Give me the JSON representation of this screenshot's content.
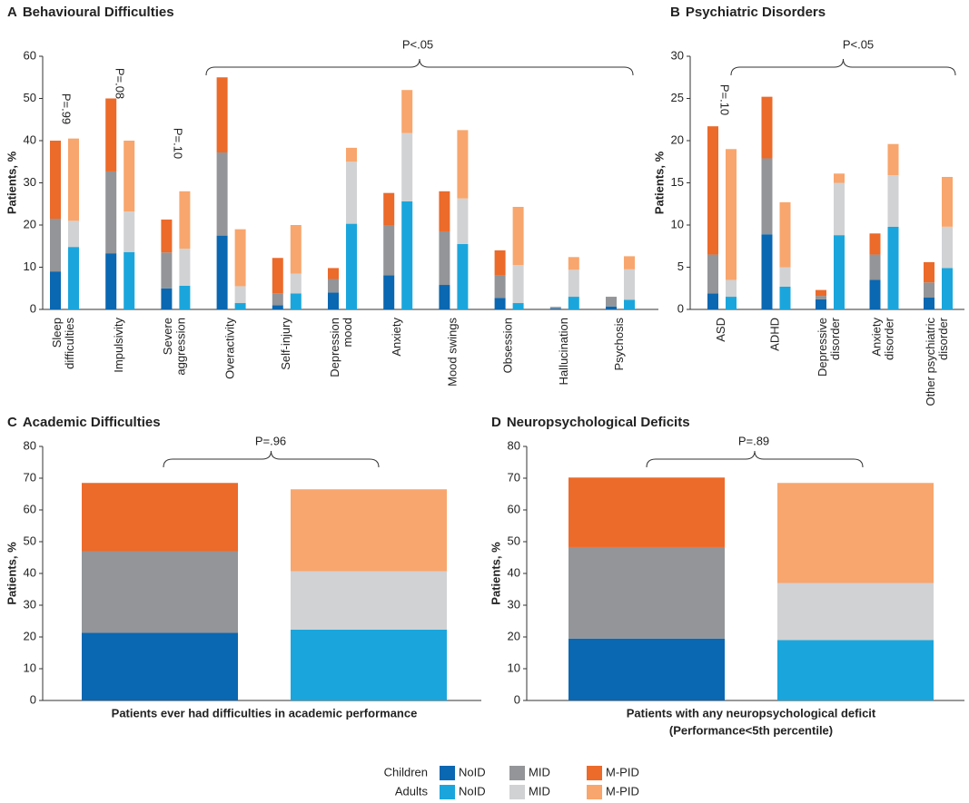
{
  "chart_data": [
    {
      "type": "bar",
      "stacked": true,
      "panel": "A",
      "title": "Behavioural Difficulties",
      "ylabel": "Patients, %",
      "ylim": [
        0,
        60
      ],
      "yticks": [
        0,
        10,
        20,
        30,
        40,
        50,
        60
      ],
      "categories": [
        [
          "Sleep",
          "difficulties"
        ],
        [
          "Impulsivity"
        ],
        [
          "Severe",
          "aggression"
        ],
        [
          "Overactivity"
        ],
        [
          "Self-injury"
        ],
        [
          "Depression",
          "mood"
        ],
        [
          "Anxiety"
        ],
        [
          "Mood swings"
        ],
        [
          "Obsession"
        ],
        [
          "Hallucination"
        ],
        [
          "Psychosis"
        ]
      ],
      "values": [
        [
          [
            9,
            12.5,
            18.5
          ],
          [
            14.8,
            6.2,
            19.5
          ]
        ],
        [
          [
            13.3,
            19.4,
            17.3
          ],
          [
            13.6,
            9.6,
            16.8
          ]
        ],
        [
          [
            5,
            8.5,
            7.8
          ],
          [
            5.6,
            8.8,
            13.6
          ]
        ],
        [
          [
            17.5,
            19.7,
            17.8
          ],
          [
            1.5,
            4,
            13.5
          ]
        ],
        [
          [
            1,
            2.8,
            8.4
          ],
          [
            3.8,
            4.7,
            11.5
          ]
        ],
        [
          [
            4,
            3.2,
            2.6
          ],
          [
            20.3,
            14.7,
            3.3
          ]
        ],
        [
          [
            8.1,
            11.9,
            7.6
          ],
          [
            25.6,
            16.2,
            10.2
          ]
        ],
        [
          [
            5.8,
            12.7,
            9.5
          ],
          [
            15.5,
            10.8,
            16.2
          ]
        ],
        [
          [
            2.7,
            5.3,
            6
          ],
          [
            1.5,
            9,
            13.8
          ]
        ],
        [
          [
            0.2,
            0.4,
            0
          ],
          [
            3,
            6.4,
            3
          ]
        ],
        [
          [
            0.7,
            2.3,
            0
          ],
          [
            2.3,
            7.2,
            3.1
          ]
        ]
      ],
      "annotations": [
        {
          "text": "P=.99"
        },
        {
          "text": "P=.08"
        },
        {
          "text": "P=.10"
        },
        {
          "text": "P<.05"
        }
      ]
    },
    {
      "type": "bar",
      "stacked": true,
      "panel": "B",
      "title": "Psychiatric Disorders",
      "ylabel": "Patients, %",
      "ylim": [
        0,
        30
      ],
      "yticks": [
        0,
        5,
        10,
        15,
        20,
        25,
        30
      ],
      "categories": [
        [
          "ASD"
        ],
        [
          "ADHD"
        ],
        [
          "Depressive",
          "disorder"
        ],
        [
          "Anxiety",
          "disorder"
        ],
        [
          "Other psychiatric",
          "disorder"
        ]
      ],
      "values": [
        [
          [
            1.9,
            4.6,
            15.2
          ],
          [
            1.5,
            2,
            15.5
          ]
        ],
        [
          [
            8.9,
            9,
            7.3
          ],
          [
            2.7,
            2.3,
            7.7
          ]
        ],
        [
          [
            1.2,
            0.4,
            0.7
          ],
          [
            8.8,
            6.2,
            1.1
          ]
        ],
        [
          [
            3.5,
            3,
            2.5
          ],
          [
            9.8,
            6.1,
            3.7
          ]
        ],
        [
          [
            1.4,
            1.8,
            2.4
          ],
          [
            4.9,
            4.9,
            5.9
          ]
        ]
      ],
      "annotations": [
        {
          "text": "P=.10"
        },
        {
          "text": "P<.05"
        }
      ]
    },
    {
      "type": "bar",
      "stacked": true,
      "panel": "C",
      "title": "Academic Difficulties",
      "ylabel": "Patients, %",
      "ylim": [
        0,
        80
      ],
      "yticks": [
        0,
        10,
        20,
        30,
        40,
        50,
        60,
        70,
        80
      ],
      "categories": [
        [
          "Patients ever had difficulties in academic performance"
        ]
      ],
      "values": [
        [
          [
            21.3,
            25.7,
            21.5
          ],
          [
            22.3,
            18.4,
            25.8
          ]
        ]
      ],
      "annotations": [
        {
          "text": "P=.96"
        }
      ]
    },
    {
      "type": "bar",
      "stacked": true,
      "panel": "D",
      "title": "Neuropsychological Deficits",
      "ylabel": "Patients, %",
      "ylim": [
        0,
        80
      ],
      "yticks": [
        0,
        10,
        20,
        30,
        40,
        50,
        60,
        70,
        80
      ],
      "categories": [
        [
          "Patients with any neuropsychological deficit",
          "(Performance<5th percentile)"
        ]
      ],
      "values": [
        [
          [
            19.5,
            28.8,
            21.9
          ],
          [
            19,
            18,
            31.5
          ]
        ]
      ],
      "annotations": [
        {
          "text": "P=.89"
        }
      ]
    }
  ],
  "legend": {
    "groups": [
      {
        "name": "Children",
        "series": [
          {
            "name": "NoID",
            "color": "#0a67b1"
          },
          {
            "name": "MID",
            "color": "#939598"
          },
          {
            "name": "M-PID",
            "color": "#ec6a2a"
          }
        ]
      },
      {
        "name": "Adults",
        "series": [
          {
            "name": "NoID",
            "color": "#1aa6dc"
          },
          {
            "name": "MID",
            "color": "#d1d2d4"
          },
          {
            "name": "M-PID",
            "color": "#f8a66d"
          }
        ]
      }
    ]
  }
}
